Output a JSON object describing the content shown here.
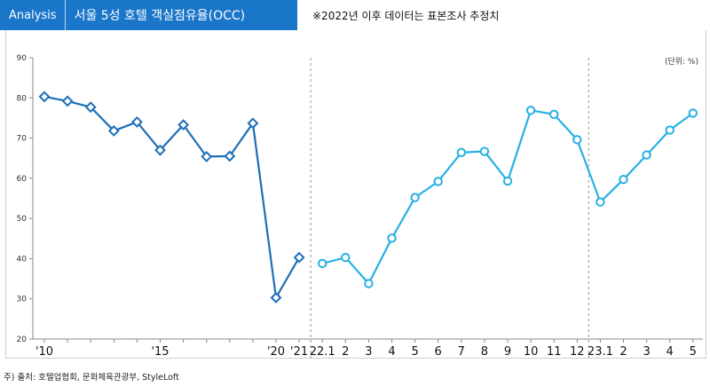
{
  "header": {
    "tag": "Analysis",
    "title": "서울 5성 호텔 객실점유율(OCC)",
    "note": "※2022년 이후 데이터는 표본조사 추정치"
  },
  "unit_label": "(단위: %)",
  "source": "주) 출처: 호텔업협회, 문화체육관광부, StyleLoft",
  "colors": {
    "header_bg": "#1a76c9",
    "series_dark": "#1e6fb8",
    "series_light": "#27b0e4"
  },
  "chart_data": {
    "type": "line",
    "ylim": [
      20,
      90
    ],
    "yticks": [
      20,
      30,
      40,
      50,
      60,
      70,
      80,
      90
    ],
    "grid": false,
    "x_labels": [
      "'10",
      "",
      "",
      "",
      "",
      "'15",
      "",
      "",
      "",
      "",
      "'20",
      "'21",
      "22.1",
      "2",
      "3",
      "4",
      "5",
      "6",
      "7",
      "8",
      "9",
      "10",
      "11",
      "12",
      "23.1",
      "2",
      "3",
      "4",
      "5"
    ],
    "series": [
      {
        "marker": "diamond",
        "values": [
          80.3,
          79.2,
          77.7,
          71.8,
          74.0,
          67.0,
          73.3,
          65.4,
          65.5,
          73.7,
          30.3,
          40.3
        ]
      },
      {
        "marker": "circle",
        "values": [
          38.8,
          40.3,
          33.8,
          45.1,
          55.2,
          59.2,
          66.4,
          66.7,
          59.3,
          76.9,
          75.9,
          69.6,
          54.1,
          59.7,
          65.8,
          72.0,
          76.2
        ]
      }
    ],
    "dividers_after_index": [
      11,
      23
    ]
  }
}
